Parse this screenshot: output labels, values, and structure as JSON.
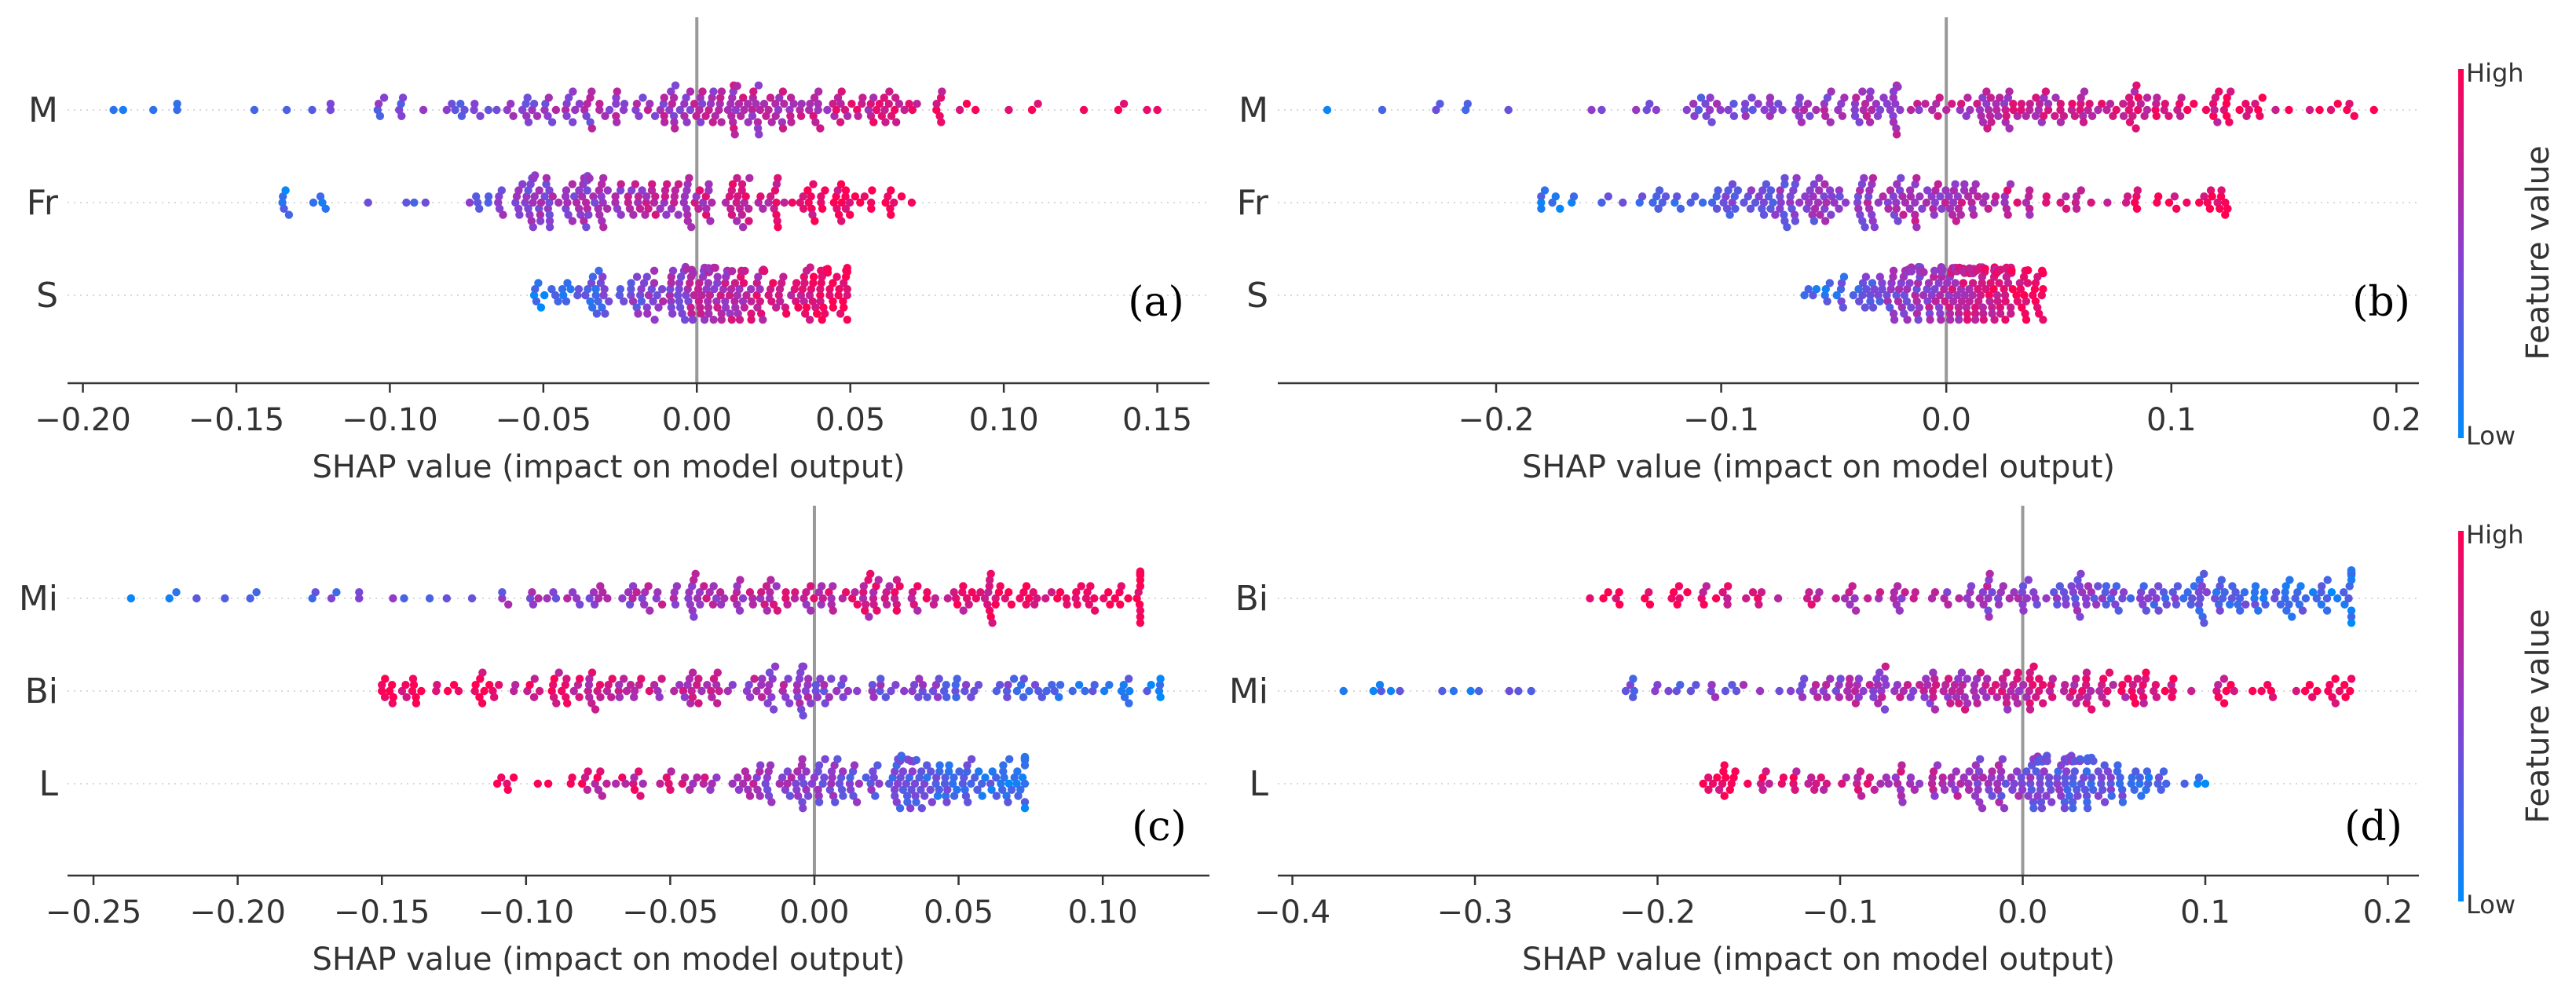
{
  "colors": {
    "low": "#008bfb",
    "high": "#ff0052",
    "zero_line": "#999999",
    "axis": "#333333",
    "row_guide": "#cccccc",
    "text": "#333333"
  },
  "colorbars": [
    {
      "high_label": "High",
      "low_label": "Low",
      "title": "Feature value"
    },
    {
      "high_label": "High",
      "low_label": "Low",
      "title": "Feature value"
    }
  ],
  "chart_data": [
    {
      "type": "scatter",
      "subtype": "shap-beeswarm",
      "panel_label": "(a)",
      "xlabel": "SHAP value (impact on model output)",
      "xlim": [
        -0.205,
        0.167
      ],
      "xticks": [
        -0.2,
        -0.15,
        -0.1,
        -0.05,
        0.0,
        0.05,
        0.1,
        0.15
      ],
      "xtick_labels": [
        "−0.20",
        "−0.15",
        "−0.10",
        "−0.05",
        "0.00",
        "0.05",
        "0.10",
        "0.15"
      ],
      "features": [
        {
          "name": "M",
          "min": -0.19,
          "max": 0.15,
          "core": [
            -0.08,
            0.07
          ],
          "mode": 0.01,
          "spread": 0.05,
          "n": 230,
          "trend": 1
        },
        {
          "name": "Fr",
          "min": -0.135,
          "max": 0.07,
          "core": [
            -0.06,
            0.06
          ],
          "mode": -0.02,
          "spread": 0.03,
          "n": 230,
          "trend": 1
        },
        {
          "name": "S",
          "min": -0.053,
          "max": 0.049,
          "core": [
            -0.04,
            0.04
          ],
          "mode": 0.01,
          "spread": 0.02,
          "n": 230,
          "trend": 1
        }
      ]
    },
    {
      "type": "scatter",
      "subtype": "shap-beeswarm",
      "panel_label": "(b)",
      "xlabel": "SHAP value (impact on model output)",
      "xlim": [
        -0.297,
        0.21
      ],
      "xticks": [
        -0.2,
        -0.1,
        0.0,
        0.1,
        0.2
      ],
      "xtick_labels": [
        "−0.2",
        "−0.1",
        "0.0",
        "0.1",
        "0.2"
      ],
      "features": [
        {
          "name": "M",
          "min": -0.275,
          "max": 0.19,
          "core": [
            -0.11,
            0.14
          ],
          "mode": 0.0,
          "spread": 0.07,
          "n": 230,
          "trend": 1
        },
        {
          "name": "Fr",
          "min": -0.18,
          "max": 0.125,
          "core": [
            -0.095,
            0.1
          ],
          "mode": -0.05,
          "spread": 0.05,
          "n": 230,
          "trend": 1
        },
        {
          "name": "S",
          "min": -0.063,
          "max": 0.043,
          "core": [
            -0.04,
            0.04
          ],
          "mode": 0.01,
          "spread": 0.02,
          "n": 230,
          "trend": 1
        }
      ]
    },
    {
      "type": "scatter",
      "subtype": "shap-beeswarm",
      "panel_label": "(c)",
      "xlabel": "SHAP value (impact on model output)",
      "xlim": [
        -0.259,
        0.137
      ],
      "xticks": [
        -0.25,
        -0.2,
        -0.15,
        -0.1,
        -0.05,
        0.0,
        0.05,
        0.1
      ],
      "xtick_labels": [
        "−0.25",
        "−0.20",
        "−0.15",
        "−0.10",
        "−0.05",
        "0.00",
        "0.05",
        "0.10"
      ],
      "features": [
        {
          "name": "Mi",
          "min": -0.237,
          "max": 0.113,
          "core": [
            -0.1,
            0.1
          ],
          "mode": 0.02,
          "spread": 0.06,
          "n": 230,
          "trend": 1
        },
        {
          "name": "Bi",
          "min": -0.15,
          "max": 0.12,
          "core": [
            -0.1,
            0.1
          ],
          "mode": -0.02,
          "spread": 0.06,
          "n": 230,
          "trend": -1
        },
        {
          "name": "L",
          "min": -0.11,
          "max": 0.073,
          "core": [
            -0.075,
            0.065
          ],
          "mode": 0.025,
          "spread": 0.03,
          "n": 230,
          "trend": -1
        }
      ]
    },
    {
      "type": "scatter",
      "subtype": "shap-beeswarm",
      "panel_label": "(d)",
      "xlabel": "SHAP value (impact on model output)",
      "xlim": [
        -0.408,
        0.217
      ],
      "xticks": [
        -0.4,
        -0.3,
        -0.2,
        -0.1,
        0.0,
        0.1,
        0.2
      ],
      "xtick_labels": [
        "−0.4",
        "−0.3",
        "−0.2",
        "−0.1",
        "0.0",
        "0.1",
        "0.2"
      ],
      "features": [
        {
          "name": "Bi",
          "min": -0.237,
          "max": 0.18,
          "core": [
            -0.2,
            0.16
          ],
          "mode": 0.08,
          "spread": 0.08,
          "n": 230,
          "trend": -1
        },
        {
          "name": "Mi",
          "min": -0.372,
          "max": 0.18,
          "core": [
            -0.22,
            0.15
          ],
          "mode": 0.0,
          "spread": 0.07,
          "n": 230,
          "trend": 1
        },
        {
          "name": "L",
          "min": -0.175,
          "max": 0.1,
          "core": [
            -0.13,
            0.07
          ],
          "mode": 0.02,
          "spread": 0.03,
          "n": 230,
          "trend": -1
        }
      ]
    }
  ]
}
